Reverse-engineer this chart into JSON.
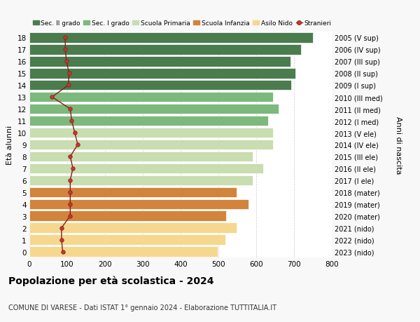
{
  "ages": [
    18,
    17,
    16,
    15,
    14,
    13,
    12,
    11,
    10,
    9,
    8,
    7,
    6,
    5,
    4,
    3,
    2,
    1,
    0
  ],
  "years_labels": [
    "2005 (V sup)",
    "2006 (IV sup)",
    "2007 (III sup)",
    "2008 (II sup)",
    "2009 (I sup)",
    "2010 (III med)",
    "2011 (II med)",
    "2012 (I med)",
    "2013 (V ele)",
    "2014 (IV ele)",
    "2015 (III ele)",
    "2016 (II ele)",
    "2017 (I ele)",
    "2018 (mater)",
    "2019 (mater)",
    "2020 (mater)",
    "2021 (nido)",
    "2022 (nido)",
    "2023 (nido)"
  ],
  "bar_values": [
    750,
    718,
    690,
    703,
    692,
    645,
    660,
    632,
    645,
    645,
    590,
    618,
    590,
    548,
    580,
    520,
    548,
    518,
    498
  ],
  "bar_colors": [
    "#4a7c4e",
    "#4a7c4e",
    "#4a7c4e",
    "#4a7c4e",
    "#4a7c4e",
    "#7db87d",
    "#7db87d",
    "#7db87d",
    "#c8ddb0",
    "#c8ddb0",
    "#c8ddb0",
    "#c8ddb0",
    "#c8ddb0",
    "#d2843c",
    "#d2843c",
    "#d2843c",
    "#f5d78e",
    "#f5d78e",
    "#f5d78e"
  ],
  "stranieri_values": [
    95,
    95,
    98,
    105,
    103,
    60,
    108,
    112,
    120,
    128,
    108,
    115,
    108,
    108,
    108,
    108,
    85,
    85,
    88
  ],
  "legend_labels": [
    "Sec. II grado",
    "Sec. I grado",
    "Scuola Primaria",
    "Scuola Infanzia",
    "Asilo Nido",
    "Stranieri"
  ],
  "legend_colors": [
    "#4a7c4e",
    "#7db87d",
    "#c8ddb0",
    "#d2843c",
    "#f5d78e",
    "#8b1a1a"
  ],
  "ylabel_label": "Età alunni",
  "right_ylabel": "Anni di nascita",
  "title": "Popolazione per età scolastica - 2024",
  "subtitle": "COMUNE DI VARESE - Dati ISTAT 1° gennaio 2024 - Elaborazione TUTTITALIA.IT",
  "xlim": [
    0,
    800
  ],
  "bg_color": "#f8f8f8",
  "plot_bg": "#ffffff"
}
